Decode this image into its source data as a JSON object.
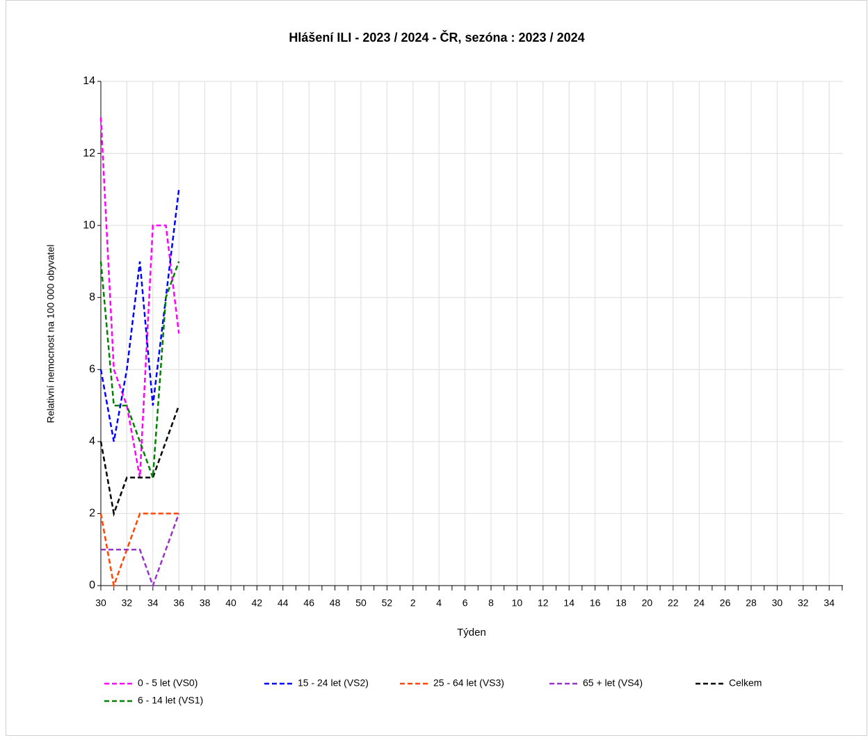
{
  "chart_data": {
    "type": "line",
    "title": "Hlášení ILI - 2023 / 2024 - ČR, sezóna : 2023 / 2024",
    "x_label": "Týden",
    "y_label": "Relativní nemocnost na 100 000 obyvatel",
    "categories": [
      "30",
      null,
      "32",
      null,
      "34",
      null,
      "36",
      null,
      "38",
      null,
      "40",
      null,
      "42",
      null,
      "44",
      null,
      "46",
      null,
      "48",
      null,
      "50",
      null,
      "52",
      null,
      "2",
      null,
      "4",
      null,
      "6",
      null,
      "8",
      null,
      "10",
      null,
      "12",
      null,
      "14",
      null,
      "16",
      null,
      "18",
      null,
      "20",
      null,
      "22",
      null,
      "24",
      null,
      "26",
      null,
      "28",
      null,
      "30",
      null,
      "32",
      null,
      "34",
      null
    ],
    "ylim": [
      0,
      14
    ],
    "yticks": [
      0,
      2,
      4,
      6,
      8,
      10,
      12,
      14
    ],
    "grid": true,
    "series": [
      {
        "name": "0 - 5 let (VS0)",
        "color": "#ff00ff",
        "values": [
          13,
          6,
          5,
          3,
          10,
          10,
          7,
          null,
          null,
          null,
          null,
          null,
          null,
          null,
          null,
          null,
          null,
          null,
          null,
          null,
          null,
          null,
          null,
          null,
          null,
          null,
          null,
          null,
          null,
          null,
          null,
          null,
          null,
          null,
          null,
          null,
          null,
          null,
          null,
          null,
          null,
          null,
          null,
          null,
          null,
          null,
          null,
          null,
          null,
          null,
          null,
          null,
          null,
          null,
          null,
          null,
          null,
          null
        ]
      },
      {
        "name": "15 - 24 let (VS2)",
        "color": "#0000ff",
        "values": [
          6,
          4,
          6,
          9,
          5,
          8,
          11,
          null,
          null,
          null,
          null,
          null,
          null,
          null,
          null,
          null,
          null,
          null,
          null,
          null,
          null,
          null,
          null,
          null,
          null,
          null,
          null,
          null,
          null,
          null,
          null,
          null,
          null,
          null,
          null,
          null,
          null,
          null,
          null,
          null,
          null,
          null,
          null,
          null,
          null,
          null,
          null,
          null,
          null,
          null,
          null,
          null,
          null,
          null,
          null,
          null,
          null,
          null
        ]
      },
      {
        "name": "25 - 64 let (VS3)",
        "color": "#ff4500",
        "values": [
          2,
          0,
          1,
          2,
          2,
          2,
          2,
          null,
          null,
          null,
          null,
          null,
          null,
          null,
          null,
          null,
          null,
          null,
          null,
          null,
          null,
          null,
          null,
          null,
          null,
          null,
          null,
          null,
          null,
          null,
          null,
          null,
          null,
          null,
          null,
          null,
          null,
          null,
          null,
          null,
          null,
          null,
          null,
          null,
          null,
          null,
          null,
          null,
          null,
          null,
          null,
          null,
          null,
          null,
          null,
          null,
          null,
          null
        ]
      },
      {
        "name": "65 + let (VS4)",
        "color": "#9932cc",
        "values": [
          1,
          1,
          1,
          1,
          0,
          1,
          2,
          null,
          null,
          null,
          null,
          null,
          null,
          null,
          null,
          null,
          null,
          null,
          null,
          null,
          null,
          null,
          null,
          null,
          null,
          null,
          null,
          null,
          null,
          null,
          null,
          null,
          null,
          null,
          null,
          null,
          null,
          null,
          null,
          null,
          null,
          null,
          null,
          null,
          null,
          null,
          null,
          null,
          null,
          null,
          null,
          null,
          null,
          null,
          null,
          null,
          null,
          null
        ]
      },
      {
        "name": "Celkem",
        "color": "#000000",
        "values": [
          4,
          2,
          3,
          3,
          3,
          4,
          5,
          null,
          null,
          null,
          null,
          null,
          null,
          null,
          null,
          null,
          null,
          null,
          null,
          null,
          null,
          null,
          null,
          null,
          null,
          null,
          null,
          null,
          null,
          null,
          null,
          null,
          null,
          null,
          null,
          null,
          null,
          null,
          null,
          null,
          null,
          null,
          null,
          null,
          null,
          null,
          null,
          null,
          null,
          null,
          null,
          null,
          null,
          null,
          null,
          null,
          null,
          null
        ]
      },
      {
        "name": "6 - 14 let (VS1)",
        "color": "#008000",
        "values": [
          9,
          5,
          5,
          4,
          3,
          8,
          9,
          null,
          null,
          null,
          null,
          null,
          null,
          null,
          null,
          null,
          null,
          null,
          null,
          null,
          null,
          null,
          null,
          null,
          null,
          null,
          null,
          null,
          null,
          null,
          null,
          null,
          null,
          null,
          null,
          null,
          null,
          null,
          null,
          null,
          null,
          null,
          null,
          null,
          null,
          null,
          null,
          null,
          null,
          null,
          null,
          null,
          null,
          null,
          null,
          null,
          null,
          null
        ]
      }
    ]
  }
}
